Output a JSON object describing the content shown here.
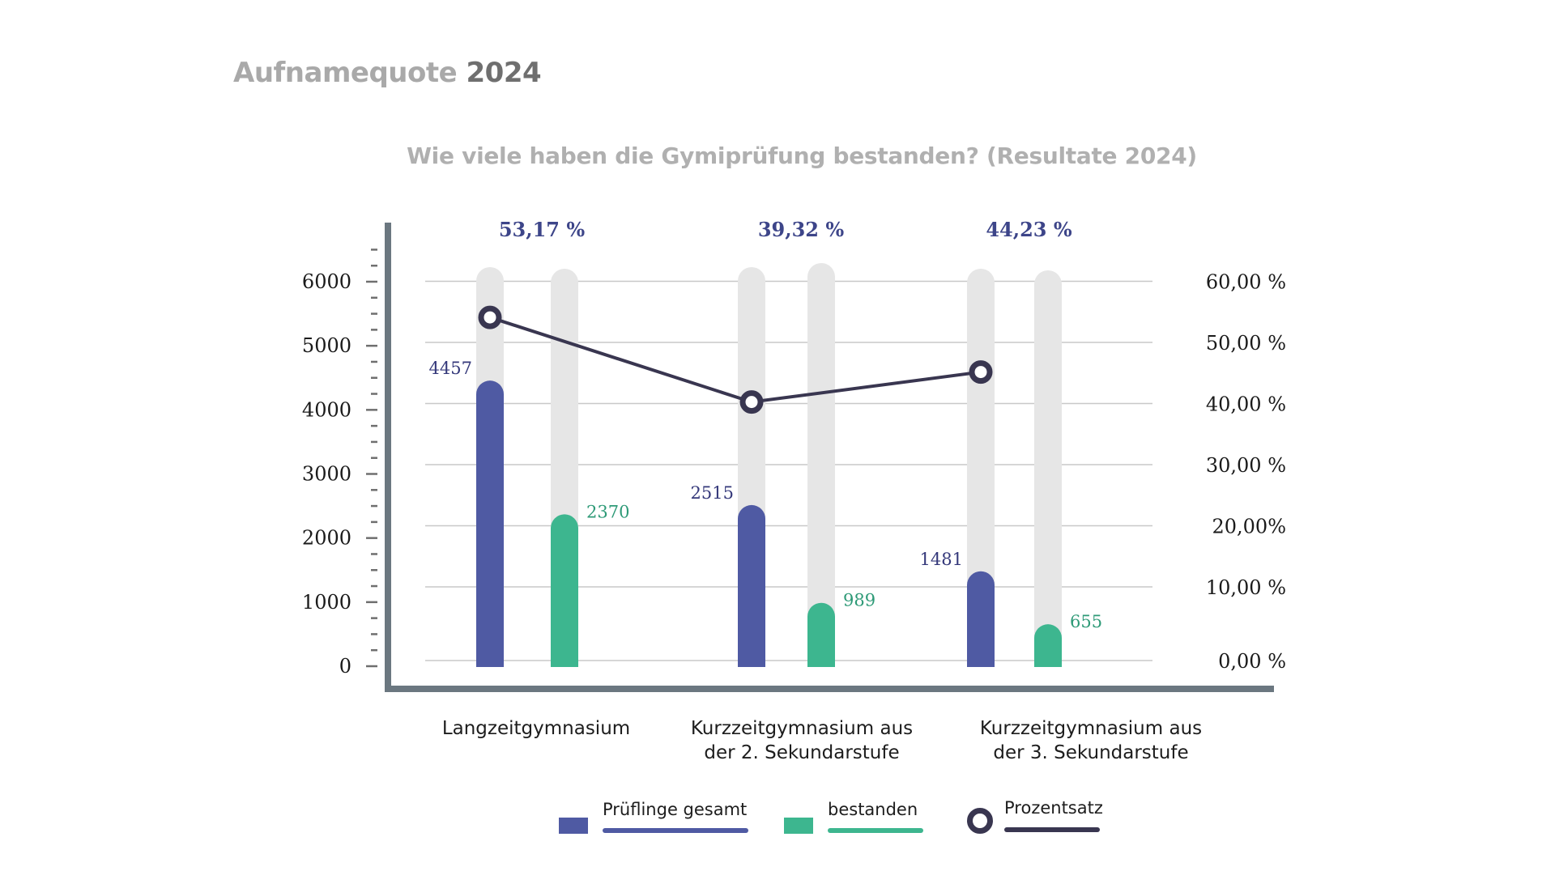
{
  "page": {
    "title_part1": "Aufnamequote",
    "title_part2": "2024"
  },
  "colors": {
    "total": "#4f5aa3",
    "passed": "#3db68f",
    "percent_line": "#393650",
    "track": "#e6e6e6",
    "axis": "#6b7780",
    "grid": "#c8c8c8",
    "percent_label": "#3d4589"
  },
  "chart_data": {
    "type": "bar",
    "title": "Wie viele haben die Gymiprüfung bestanden? (Resultate 2024)",
    "categories": [
      "Langzeitgymnasium",
      "Kurzzeitgymnasium aus der 2. Sekundarstufe",
      "Kurzzeitgymnasium aus der 3. Sekundarstufe"
    ],
    "category_lines": [
      [
        "Langzeitgymnasium"
      ],
      [
        "Kurzzeitgymnasium aus",
        "der 2. Sekundarstufe"
      ],
      [
        "Kurzzeitgymnasium aus",
        "der 3. Sekundarstufe"
      ]
    ],
    "series": [
      {
        "name": "Prüflinge gesamt",
        "type": "bar",
        "axis": "left",
        "values": [
          4457,
          2515,
          1481
        ],
        "labels": [
          "4457",
          "2515",
          "1481"
        ]
      },
      {
        "name": "bestanden",
        "type": "bar",
        "axis": "left",
        "values": [
          2370,
          989,
          655
        ],
        "labels": [
          "2370",
          "989",
          "655"
        ]
      },
      {
        "name": "Prozentsatz",
        "type": "line",
        "axis": "right",
        "values": [
          53.17,
          39.32,
          44.23
        ],
        "labels": [
          "53,17 %",
          "39,32 %",
          "44,23 %"
        ]
      }
    ],
    "left_axis": {
      "ylim": [
        0,
        6000
      ],
      "ticks": [
        0,
        1000,
        2000,
        3000,
        4000,
        5000,
        6000
      ],
      "tick_labels": [
        "0",
        "1000",
        "2000",
        "3000",
        "4000",
        "5000",
        "6000"
      ]
    },
    "right_axis": {
      "ylim": [
        0,
        60
      ],
      "ticks": [
        0,
        10,
        20,
        30,
        40,
        50,
        60
      ],
      "tick_labels": [
        "0,00 %",
        "10,00 %",
        "20,00%",
        "30,00 %",
        "40,00 %",
        "50,00 %",
        "60,00 %"
      ]
    },
    "grid": true,
    "legend_position": "bottom",
    "legend": [
      "Prüflinge gesamt",
      "bestanden",
      "Prozentsatz"
    ]
  }
}
